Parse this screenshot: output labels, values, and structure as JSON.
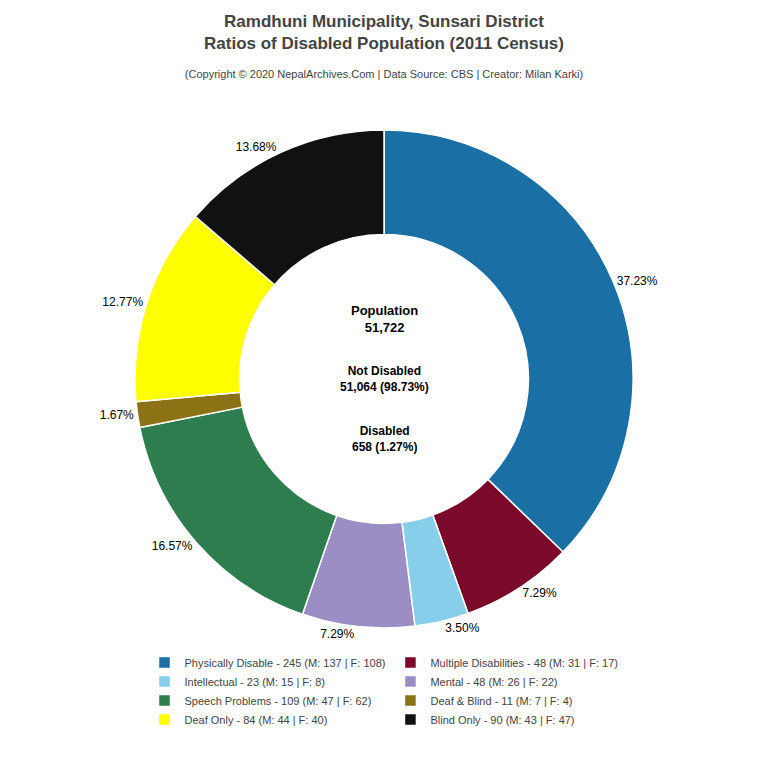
{
  "chart_data": {
    "type": "pie",
    "title": "Ramdhuni Municipality, Sunsari District\nRatios of Disabled Population (2011 Census)",
    "subtitle": "(Copyright © 2020 NepalArchives.Com | Data Source: CBS | Creator: Milan Karki)",
    "categories": [
      "Physically Disable - 245 (M: 137 | F: 108)",
      "Multiple Disabilities - 48 (M: 31 | F: 17)",
      "Intellectual - 23 (M: 15 | F: 8)",
      "Mental - 48 (M: 26 | F: 22)",
      "Speech Problems - 109 (M: 47 | F: 62)",
      "Deaf & Blind - 11 (M: 7 | F: 4)",
      "Deaf Only - 84 (M: 44 | F: 40)",
      "Blind Only - 90 (M: 43 | F: 47)"
    ],
    "values": [
      37.23,
      7.29,
      3.5,
      7.29,
      16.57,
      1.67,
      12.77,
      13.68
    ],
    "value_labels": [
      "37.23%",
      "7.29%",
      "3.50%",
      "7.29%",
      "16.57%",
      "1.67%",
      "12.77%",
      "13.68%"
    ],
    "colors": [
      "#1a6fa5",
      "#7b0a2a",
      "#87ceeb",
      "#9b8ec4",
      "#2e7d4f",
      "#8b7315",
      "#ffff00",
      "#111111"
    ],
    "data_labels": true,
    "legend": "bottom",
    "annotations": [
      "Population\n51,722",
      "Not Disabled\n51,064 (98.73%)",
      "Disabled\n658 (1.27%)"
    ]
  }
}
